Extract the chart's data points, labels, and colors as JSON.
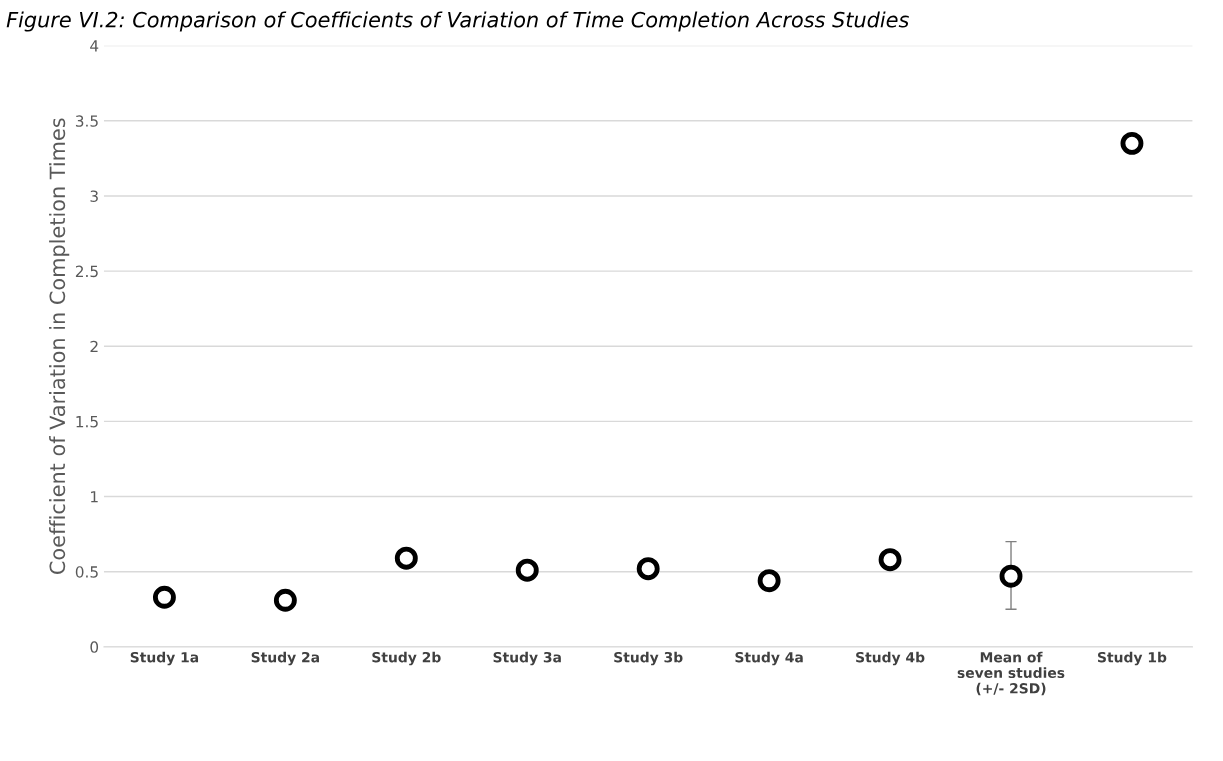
{
  "chart_data": {
    "type": "scatter",
    "title": "Figure VI.2: Comparison of Coefficients of Variation of Time Completion Across Studies",
    "ylabel": "Coefficient of Variation in Completion Times",
    "categories": [
      "Study 1a",
      "Study 2a",
      "Study 2b",
      "Study 3a",
      "Study 3b",
      "Study 4a",
      "Study 4b",
      "Mean of\nseven studies\n(+/- 2SD)",
      "Study 1b"
    ],
    "values": [
      0.33,
      0.31,
      0.59,
      0.51,
      0.52,
      0.44,
      0.58,
      0.47,
      3.35
    ],
    "errors": [
      null,
      null,
      null,
      null,
      null,
      null,
      null,
      [
        0.25,
        0.7
      ],
      null
    ],
    "color": "#000000",
    "marker": "circle",
    "ylim": [
      0,
      4
    ],
    "yticks": [
      0,
      0.5,
      1,
      1.5,
      2,
      2.5,
      3,
      3.5,
      4
    ],
    "grid": "y"
  }
}
